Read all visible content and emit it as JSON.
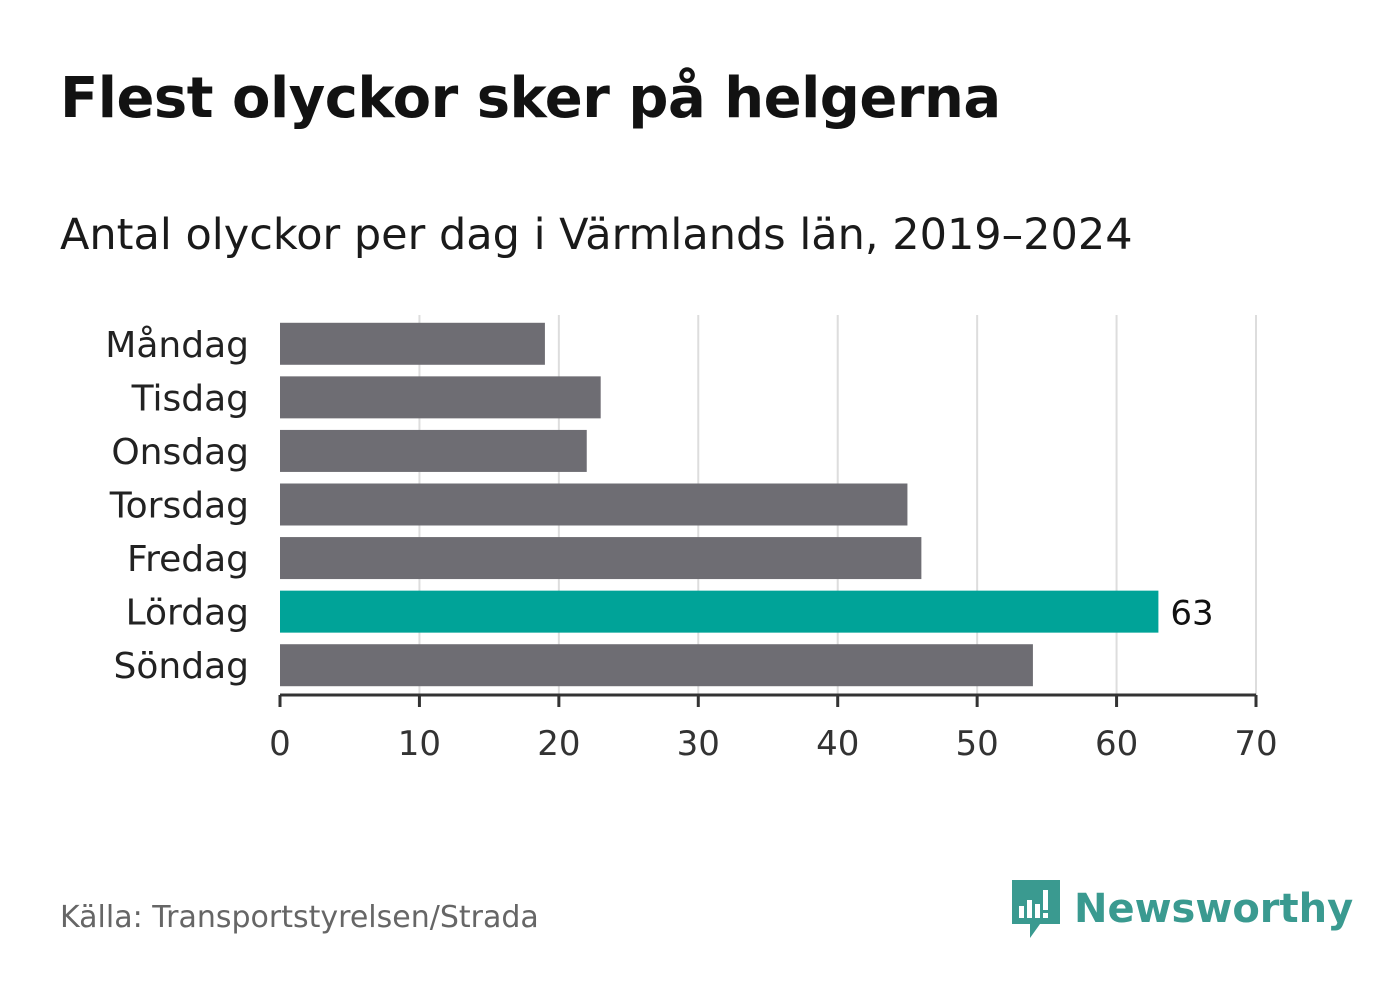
{
  "title": "Flest olyckor sker på helgerna",
  "subtitle": "Antal olyckor per dag i Värmlands län, 2019–2024",
  "source": "Källa: Transportstyrelsen/Strada",
  "brand": {
    "name": "Newsworthy",
    "icon": "newsworthy-logo-icon",
    "color": "#3a9a90"
  },
  "colors": {
    "bar": "#6e6d73",
    "highlight": "#00a398",
    "grid": "#dddddd",
    "axis": "#333333"
  },
  "chart_data": {
    "type": "bar",
    "orientation": "horizontal",
    "categories": [
      "Måndag",
      "Tisdag",
      "Onsdag",
      "Torsdag",
      "Fredag",
      "Lördag",
      "Söndag"
    ],
    "values": [
      19,
      23,
      22,
      45,
      46,
      63,
      54
    ],
    "highlight_index": 5,
    "data_labels": {
      "Lördag": "63"
    },
    "xlim": [
      0,
      70
    ],
    "xticks": [
      0,
      10,
      20,
      30,
      40,
      50,
      60,
      70
    ],
    "grid": true,
    "title": "Flest olyckor sker på helgerna",
    "subtitle": "Antal olyckor per dag i Värmlands län, 2019–2024",
    "xlabel": "",
    "ylabel": ""
  }
}
